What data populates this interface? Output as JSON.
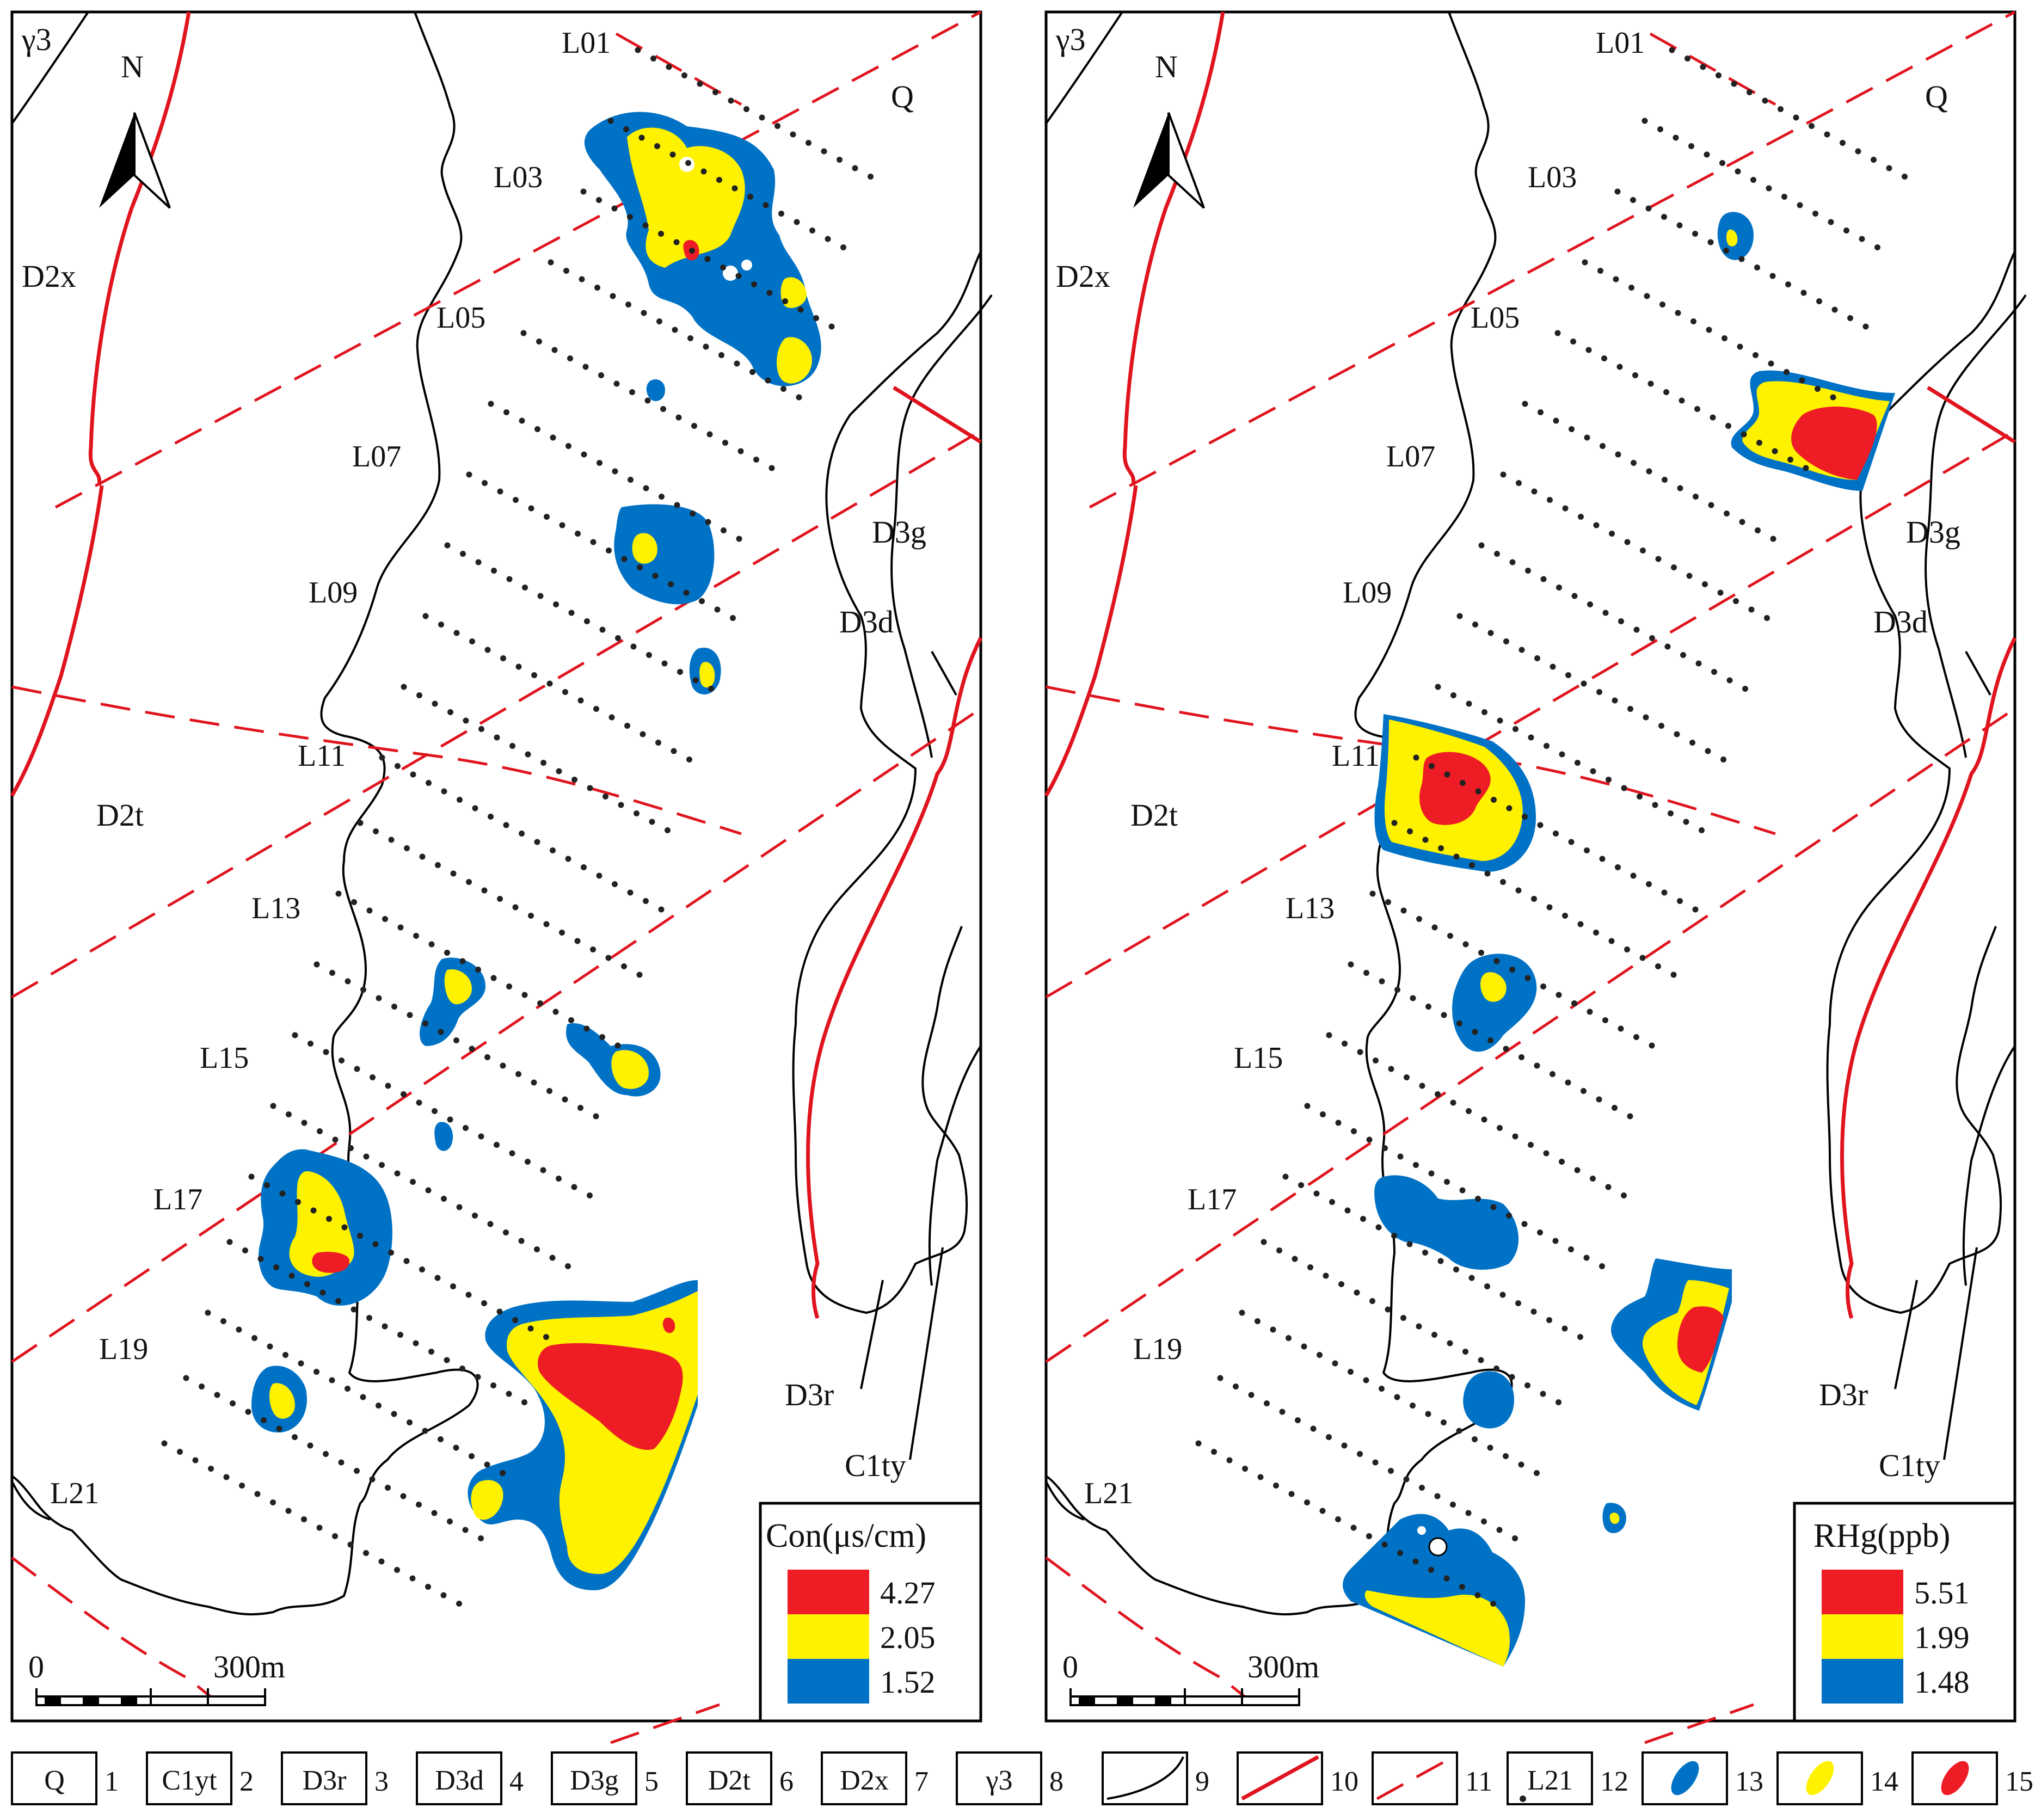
{
  "colors": {
    "high": "#ee1c25",
    "mid": "#fff200",
    "low": "#0072c6",
    "fault": "#e0141e",
    "boundary": "#000000",
    "sample": "#222222"
  },
  "panels": [
    {
      "id": "left",
      "legend": {
        "title": "Con(μs/cm)",
        "levels": [
          {
            "value": "4.27",
            "color": "#ee1c25"
          },
          {
            "value": "2.05",
            "color": "#fff200"
          },
          {
            "value": "1.52",
            "color": "#0072c6"
          }
        ]
      }
    },
    {
      "id": "right",
      "legend": {
        "title": "RHg(ppb)",
        "levels": [
          {
            "value": "5.51",
            "color": "#ee1c25"
          },
          {
            "value": "1.99",
            "color": "#fff200"
          },
          {
            "value": "1.48",
            "color": "#0072c6"
          }
        ]
      }
    }
  ],
  "map_labels": {
    "north": "N",
    "scale_start": "0",
    "scale_end": "300m",
    "units": {
      "gamma": "γ3",
      "d2x": "D2x",
      "d2t": "D2t",
      "q": "Q",
      "d3g": "D3g",
      "d3d": "D3d",
      "d3r": "D3r",
      "c1ty": "C1ty"
    },
    "survey_lines": [
      "L01",
      "L03",
      "L05",
      "L07",
      "L09",
      "L11",
      "L13",
      "L15",
      "L17",
      "L19",
      "L21"
    ]
  },
  "key": [
    {
      "symbol": "Q",
      "num": "1"
    },
    {
      "symbol": "C1yt",
      "num": "2"
    },
    {
      "symbol": "D3r",
      "num": "3"
    },
    {
      "symbol": "D3d",
      "num": "4"
    },
    {
      "symbol": "D3g",
      "num": "5"
    },
    {
      "symbol": "D2t",
      "num": "6"
    },
    {
      "symbol": "D2x",
      "num": "7"
    },
    {
      "symbol": "γ3",
      "num": "8"
    },
    {
      "symbol": "geologic-boundary",
      "num": "9"
    },
    {
      "symbol": "fault",
      "num": "10"
    },
    {
      "symbol": "inferred-fault",
      "num": "11"
    },
    {
      "symbol": "L21",
      "num": "12"
    },
    {
      "symbol": "low-anomaly",
      "num": "13"
    },
    {
      "symbol": "mid-anomaly",
      "num": "14"
    },
    {
      "symbol": "high-anomaly",
      "num": "15"
    }
  ]
}
